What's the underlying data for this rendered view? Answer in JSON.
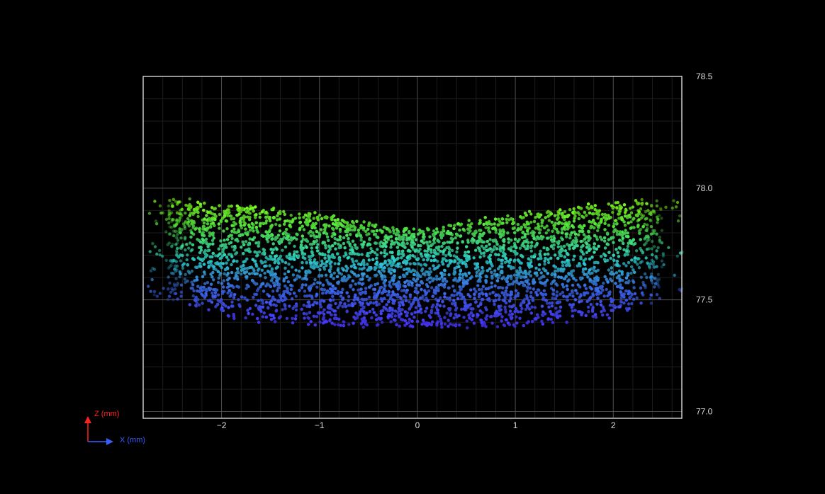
{
  "chart_data": {
    "type": "scatter",
    "title": "",
    "style": "3d-point-cloud-side-view",
    "background": "#000000",
    "grid": true,
    "x_range": [
      -2.8,
      2.7
    ],
    "y_range": [
      76.97,
      78.5
    ],
    "x_ticks": [
      -2,
      -1,
      0,
      1,
      2
    ],
    "x_tick_labels": [
      "−2",
      "−1",
      "0",
      "1",
      "2"
    ],
    "y_ticks": [
      77.0,
      77.5,
      78.0,
      78.5
    ],
    "y_tick_labels": [
      "77.0",
      "77.5",
      "78.0",
      "78.5"
    ],
    "y_axis_side": "right",
    "color_by": "z",
    "colormap": [
      {
        "z": 77.38,
        "color": "#4a32ff"
      },
      {
        "z": 77.55,
        "color": "#3c6cf0"
      },
      {
        "z": 77.68,
        "color": "#2ed8d0"
      },
      {
        "z": 77.82,
        "color": "#55ee44"
      },
      {
        "z": 77.93,
        "color": "#7fff1e"
      }
    ],
    "point_cloud": {
      "x_extent": [
        -2.55,
        2.5
      ],
      "outlier_extent": [
        -2.75,
        2.72
      ],
      "top_edge": [
        {
          "x": -2.5,
          "z": 77.95
        },
        {
          "x": -1.5,
          "z": 77.91
        },
        {
          "x": -0.5,
          "z": 77.85
        },
        {
          "x": 0.0,
          "z": 77.81
        },
        {
          "x": 0.5,
          "z": 77.85
        },
        {
          "x": 1.5,
          "z": 77.91
        },
        {
          "x": 2.5,
          "z": 77.95
        }
      ],
      "bottom_edge": [
        {
          "x": -2.5,
          "z": 77.5
        },
        {
          "x": -2.0,
          "z": 77.43
        },
        {
          "x": -1.5,
          "z": 77.4
        },
        {
          "x": -1.0,
          "z": 77.38
        },
        {
          "x": 0.0,
          "z": 77.37
        },
        {
          "x": 1.0,
          "z": 77.38
        },
        {
          "x": 1.5,
          "z": 77.4
        },
        {
          "x": 2.0,
          "z": 77.43
        },
        {
          "x": 2.5,
          "z": 77.5
        }
      ],
      "point_count": 6000
    }
  },
  "axis_indicator": {
    "vertical_label": "Z (mm)",
    "vertical_color": "#ff2020",
    "horizontal_label": "X (mm)",
    "horizontal_color": "#3a5cff"
  }
}
